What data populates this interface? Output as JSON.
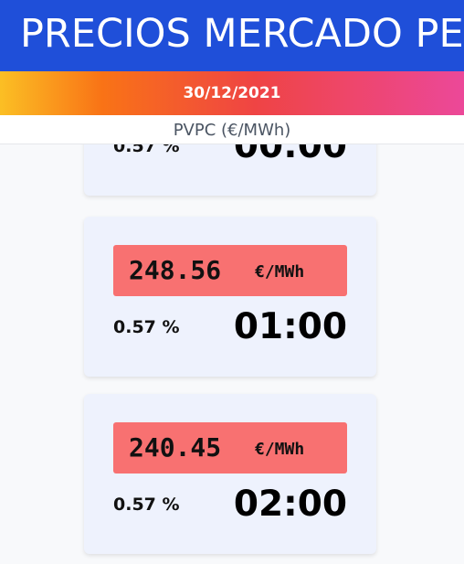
{
  "header": {
    "title": "PRECIOS MERCADO PE",
    "date": "30/12/2021",
    "unit_label": "PVPC (€/MWh)"
  },
  "colors": {
    "title_bg": "#1f4fd9",
    "gradient": [
      "#fbbf24",
      "#f97316",
      "#ef4444",
      "#ec4899"
    ],
    "card_bg": "#eef2fd",
    "price_box_bg": "#f87171"
  },
  "cards": [
    {
      "price": "",
      "unit": "",
      "percent": "0.57 %",
      "hour": "00:00"
    },
    {
      "price": "248.56",
      "unit": "€/MWh",
      "percent": "0.57 %",
      "hour": "01:00"
    },
    {
      "price": "240.45",
      "unit": "€/MWh",
      "percent": "0.57 %",
      "hour": "02:00"
    }
  ]
}
